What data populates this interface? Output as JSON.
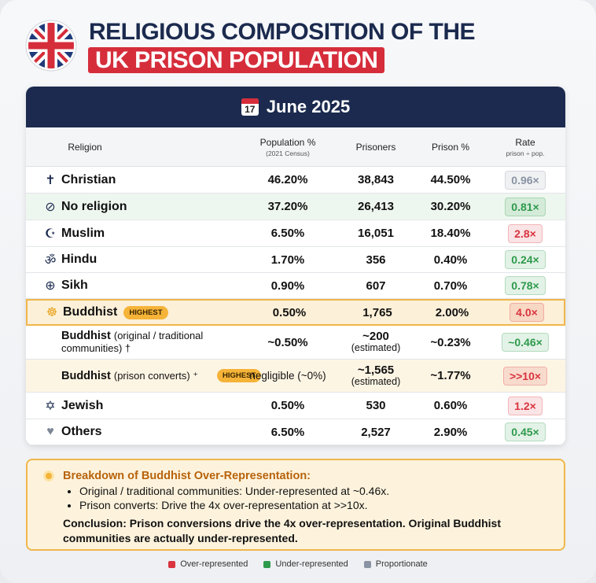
{
  "header": {
    "title_line1": "RELIGIOUS COMPOSITION OF THE",
    "title_line2": "UK PRISON POPULATION"
  },
  "table": {
    "calendar_day": "17",
    "date": "June 2025",
    "columns": [
      {
        "label": "Religion"
      },
      {
        "label": "Population %",
        "sublabel": "(2021 Census)"
      },
      {
        "label": "Prisoners"
      },
      {
        "label": "Prison %"
      },
      {
        "label": "Rate",
        "sublabel": "prison ÷ pop."
      }
    ],
    "rows": [
      {
        "icon": "✝",
        "name": "Christian",
        "population": "46.20%",
        "prisoners": "38,843",
        "prison": "44.50%",
        "rate": "0.96×",
        "rate_key": 2
      },
      {
        "icon": "⊘",
        "name": "No religion",
        "population": "37.20%",
        "prisoners": "26,413",
        "prison": "30.20%",
        "rate": "0.81×",
        "rate_key": 1
      },
      {
        "icon": "☪",
        "name": "Muslim",
        "population": "6.50%",
        "prisoners": "16,051",
        "prison": "18.40%",
        "rate": "2.8×",
        "rate_key": 0
      },
      {
        "icon": "ॐ",
        "name": "Hindu",
        "population": "1.70%",
        "prisoners": "356",
        "prison": "0.40%",
        "rate": "0.24×",
        "rate_key": 1
      },
      {
        "icon": "⊕",
        "name": "Sikh",
        "population": "0.90%",
        "prisoners": "607",
        "prison": "0.70%",
        "rate": "0.78×",
        "rate_key": 1
      },
      {
        "icon": "☸",
        "name": "Buddhist",
        "badge": "HIGHEST",
        "population": "0.50%",
        "prisoners": "1,765",
        "prison": "2.00%",
        "rate": "4.0×",
        "rate_key": 0
      },
      {
        "name": "Buddhist",
        "qualifier": "(original / traditional communities) †",
        "population": "~0.50%",
        "prisoners": "~200",
        "prisoners_note": "(estimated)",
        "prison": "~0.23%",
        "rate": "~0.46×",
        "rate_key": 1
      },
      {
        "name": "Buddhist",
        "qualifier": "(prison converts) ⁺",
        "badge": "HIGHEST",
        "population": "negligible (~0%)",
        "prisoners": "~1,565",
        "prisoners_note": "(estimated)",
        "prison": "~1.77%",
        "rate": ">>10×",
        "rate_key": 0
      },
      {
        "icon": "✡",
        "name": "Jewish",
        "population": "0.50%",
        "prisoners": "530",
        "prison": "0.60%",
        "rate": "1.2×",
        "rate_key": 0
      },
      {
        "icon": "♥",
        "name": "Others",
        "population": "6.50%",
        "prisoners": "2,527",
        "prison": "2.90%",
        "rate": "0.45×",
        "rate_key": 1
      }
    ]
  },
  "note": {
    "title": "Breakdown of Buddhist Over-Representation:",
    "bullets": [
      "Original / traditional communities: Under-represented at ~0.46x.",
      "Prison converts: Drive the 4x over-representation at >>10x."
    ],
    "conclusion": "Conclusion: Prison conversions drive the 4x over-representation. Original Buddhist communities are actually under-represented."
  },
  "legend": [
    {
      "label": "Over-represented",
      "color": "#d9343f"
    },
    {
      "label": "Under-represented",
      "color": "#2e9a4c"
    },
    {
      "label": "Proportionate",
      "color": "#8a93a3"
    }
  ]
}
